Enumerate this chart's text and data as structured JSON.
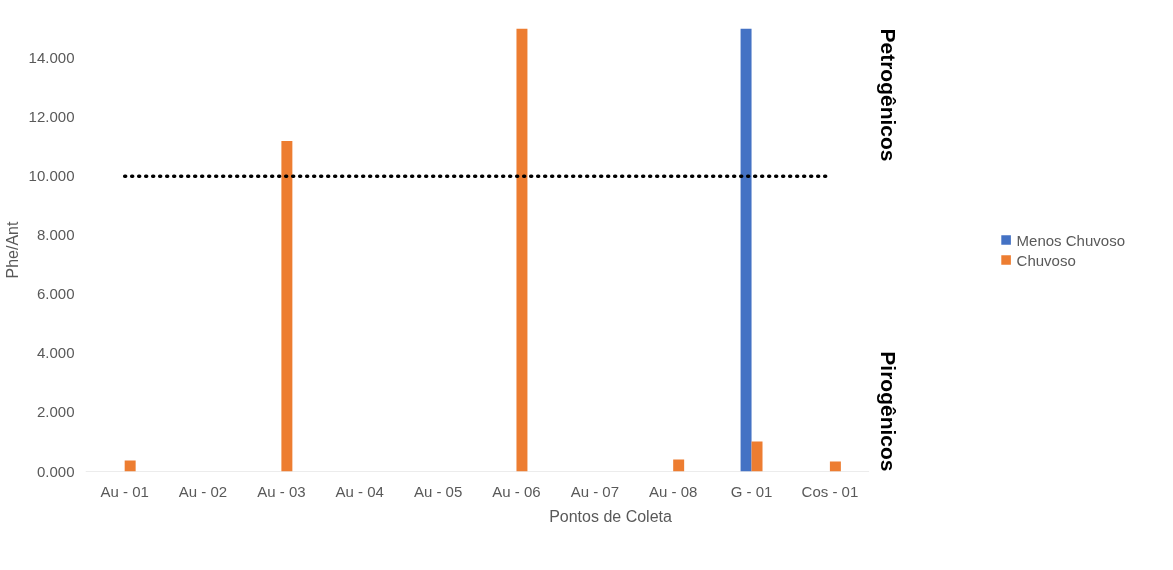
{
  "chart_data": {
    "type": "bar",
    "xlabel": "Pontos de Coleta",
    "ylabel": "Phe/Ant",
    "categories": [
      "Au - 01",
      "Au - 02",
      "Au - 03",
      "Au - 04",
      "Au - 05",
      "Au - 06",
      "Au - 07",
      "Au - 08",
      "G - 01",
      "Cos - 01"
    ],
    "series": [
      {
        "name": "Menos Chuvoso",
        "color": "#4472c4",
        "values": [
          null,
          null,
          null,
          null,
          null,
          null,
          null,
          null,
          15,
          null
        ]
      },
      {
        "name": "Chuvoso",
        "color": "#ed7d31",
        "values": [
          0.37,
          null,
          11.19,
          null,
          null,
          15,
          null,
          0.41,
          1.02,
          0.34
        ]
      }
    ],
    "ylim": [
      0,
      15
    ],
    "yticks": [
      {
        "value": 0,
        "label": "0.000"
      },
      {
        "value": 2,
        "label": "2.000"
      },
      {
        "value": 4,
        "label": "4.000"
      },
      {
        "value": 6,
        "label": "6.000"
      },
      {
        "value": 8,
        "label": "8.000"
      },
      {
        "value": 10,
        "label": "10.000"
      },
      {
        "value": 12,
        "label": "12.000"
      },
      {
        "value": 14,
        "label": "14.000"
      }
    ],
    "ref_lines": [
      {
        "axis": "y",
        "value": 10,
        "color": "#000000",
        "line_style": "dotted"
      }
    ],
    "annotations": [
      "Petrogênicos",
      "Pirogênicos"
    ],
    "grid": false,
    "legend": "right"
  }
}
